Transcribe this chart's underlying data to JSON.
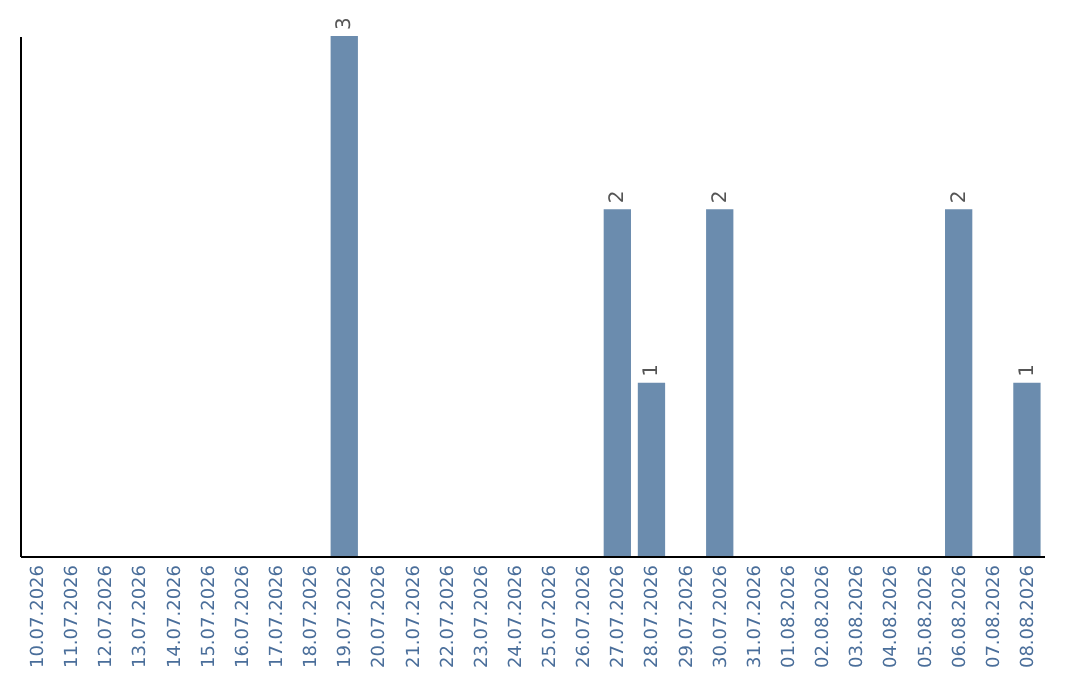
{
  "chart_data": {
    "type": "bar",
    "categories": [
      "10.07.2026",
      "11.07.2026",
      "12.07.2026",
      "13.07.2026",
      "14.07.2026",
      "15.07.2026",
      "16.07.2026",
      "17.07.2026",
      "18.07.2026",
      "19.07.2026",
      "20.07.2026",
      "21.07.2026",
      "22.07.2026",
      "23.07.2026",
      "24.07.2026",
      "25.07.2026",
      "26.07.2026",
      "27.07.2026",
      "28.07.2026",
      "29.07.2026",
      "30.07.2026",
      "31.07.2026",
      "01.08.2026",
      "02.08.2026",
      "03.08.2026",
      "04.08.2026",
      "05.08.2026",
      "06.08.2026",
      "07.08.2026",
      "08.08.2026"
    ],
    "values": [
      0,
      0,
      0,
      0,
      0,
      0,
      0,
      0,
      0,
      3,
      0,
      0,
      0,
      0,
      0,
      0,
      0,
      2,
      1,
      0,
      2,
      0,
      0,
      0,
      0,
      0,
      0,
      2,
      0,
      1
    ],
    "value_labels": [
      null,
      null,
      null,
      null,
      null,
      null,
      null,
      null,
      null,
      "3",
      null,
      null,
      null,
      null,
      null,
      null,
      null,
      "2",
      "1",
      null,
      "2",
      null,
      null,
      null,
      null,
      null,
      null,
      "2",
      null,
      "1"
    ],
    "color": "#6b8cae",
    "ylim": [
      0,
      3
    ],
    "tick_labels": "x",
    "grid": false
  }
}
